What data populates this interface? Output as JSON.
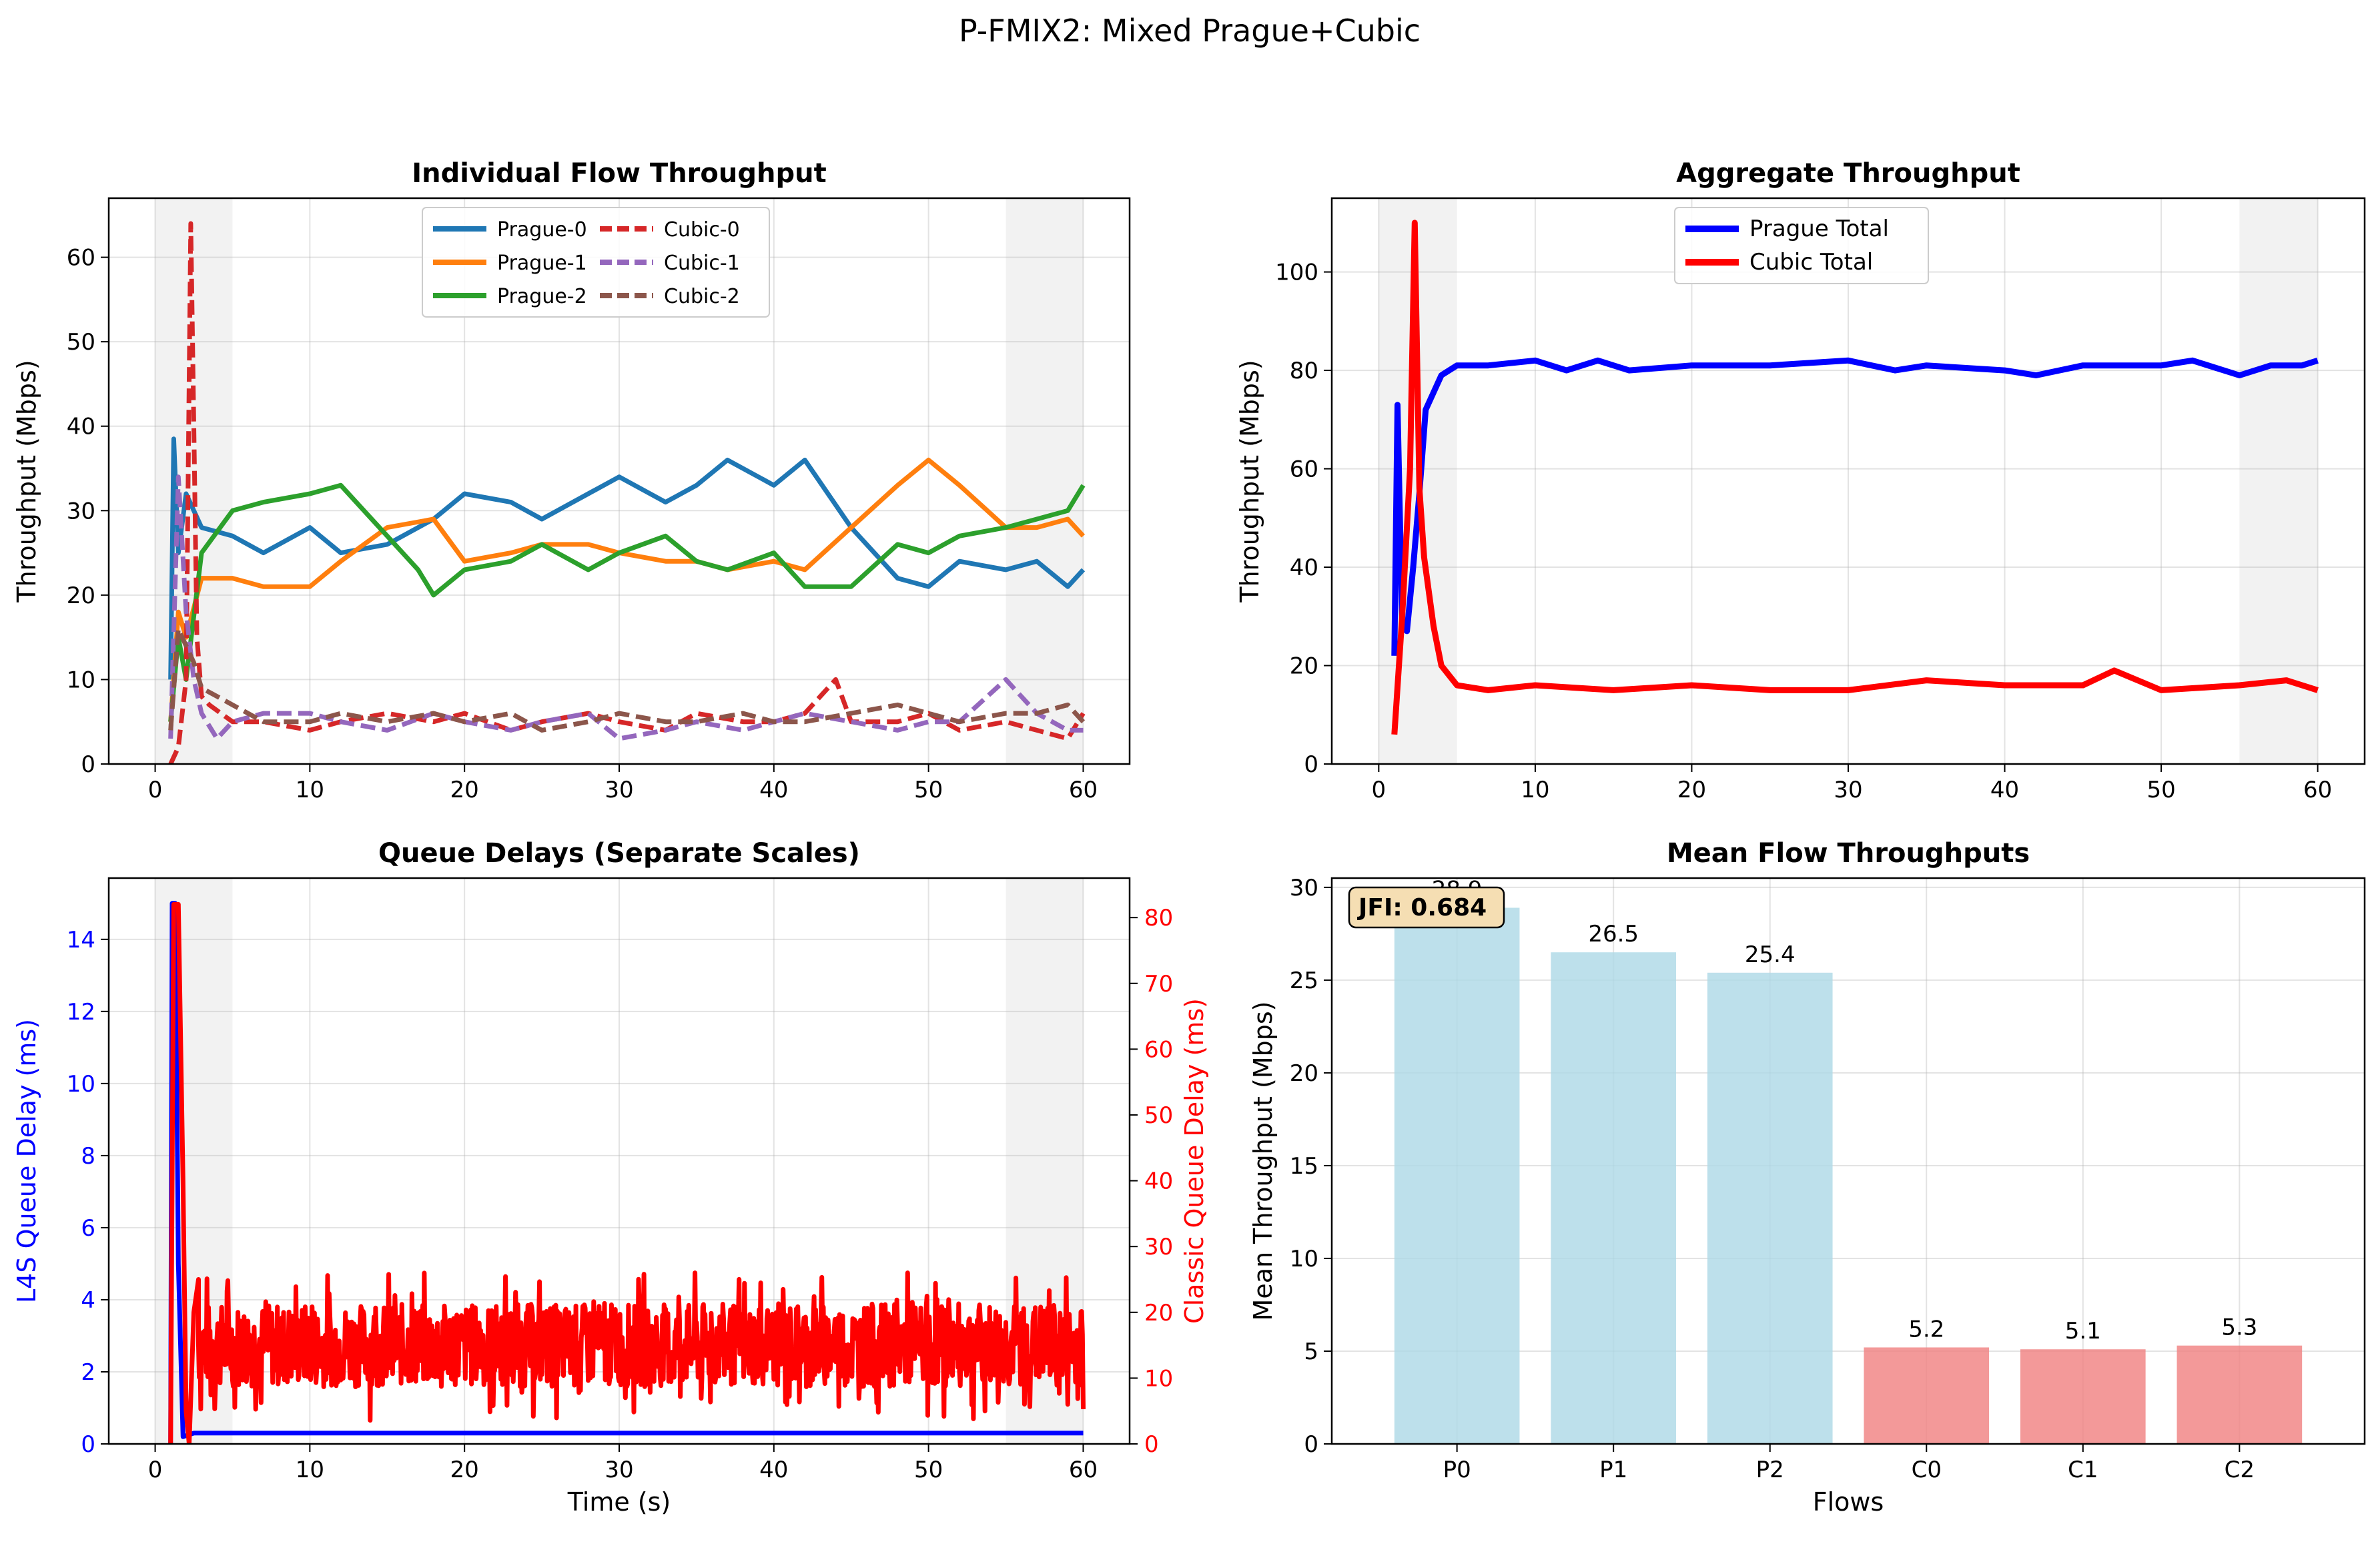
{
  "figure": {
    "suptitle": "P-FMIX2: Mixed Prague+Cubic"
  },
  "colors": {
    "prague0": "#1f77b4",
    "prague1": "#ff7f0e",
    "prague2": "#2ca02c",
    "cubic0": "#d62728",
    "cubic1": "#9467bd",
    "cubic2": "#8c564b",
    "prague_total": "#0000ff",
    "cubic_total": "#ff0000",
    "prague_bar": "#add8e6",
    "cubic_bar": "#f08080",
    "shade": "#d3d3d3"
  },
  "chart_data": [
    {
      "id": "individual",
      "type": "line",
      "title": "Individual Flow Throughput",
      "xlabel": "",
      "ylabel": "Throughput (Mbps)",
      "xlim": [
        -3,
        63
      ],
      "ylim": [
        0,
        67
      ],
      "xticks": [
        0,
        10,
        20,
        30,
        40,
        50,
        60
      ],
      "yticks": [
        0,
        10,
        20,
        30,
        40,
        50,
        60
      ],
      "grid": true,
      "shaded_x_ranges": [
        [
          0,
          5
        ],
        [
          55,
          60
        ]
      ],
      "legend": {
        "placement": "upper center",
        "columns": 2
      },
      "series": [
        {
          "name": "Prague-0",
          "color": "prague0",
          "dash": "solid",
          "x": [
            1,
            1.2,
            1.5,
            2,
            3,
            5,
            7,
            10,
            12,
            15,
            18,
            20,
            23,
            25,
            28,
            30,
            33,
            35,
            37,
            40,
            42,
            45,
            48,
            50,
            52,
            55,
            57,
            59,
            60
          ],
          "y": [
            10,
            38.5,
            25,
            32,
            28,
            27,
            25,
            28,
            25,
            26,
            29,
            32,
            31,
            29,
            32,
            34,
            31,
            33,
            36,
            33,
            36,
            28,
            22,
            21,
            24,
            23,
            24,
            21,
            23
          ]
        },
        {
          "name": "Prague-1",
          "color": "prague1",
          "dash": "solid",
          "x": [
            1,
            1.5,
            2,
            3,
            5,
            7,
            10,
            12,
            15,
            18,
            20,
            23,
            25,
            28,
            30,
            33,
            35,
            37,
            40,
            42,
            45,
            48,
            50,
            52,
            55,
            57,
            59,
            60
          ],
          "y": [
            5,
            18,
            15,
            22,
            22,
            21,
            21,
            24,
            28,
            29,
            24,
            25,
            26,
            26,
            25,
            24,
            24,
            23,
            24,
            23,
            28,
            33,
            36,
            33,
            28,
            28,
            29,
            27
          ]
        },
        {
          "name": "Prague-2",
          "color": "prague2",
          "dash": "solid",
          "x": [
            1,
            1.5,
            2,
            3,
            5,
            7,
            10,
            12,
            15,
            17,
            18,
            20,
            23,
            25,
            28,
            30,
            33,
            35,
            37,
            40,
            42,
            45,
            48,
            50,
            52,
            55,
            57,
            59,
            60
          ],
          "y": [
            5,
            15,
            10,
            25,
            30,
            31,
            32,
            33,
            27,
            23,
            20,
            23,
            24,
            26,
            23,
            25,
            27,
            24,
            23,
            25,
            21,
            21,
            26,
            25,
            27,
            28,
            29,
            30,
            33
          ]
        },
        {
          "name": "Cubic-0",
          "color": "cubic0",
          "dash": "dashed",
          "x": [
            1,
            1.5,
            2,
            2.3,
            2.5,
            2.7,
            3,
            3.5,
            5,
            7,
            10,
            12,
            15,
            18,
            20,
            23,
            25,
            28,
            30,
            33,
            35,
            38,
            40,
            42,
            44,
            45,
            48,
            50,
            52,
            55,
            57,
            59,
            60
          ],
          "y": [
            0,
            2,
            10,
            64,
            40,
            15,
            8,
            7,
            5,
            5,
            4,
            5,
            6,
            5,
            6,
            4,
            5,
            6,
            5,
            4,
            6,
            5,
            5,
            6,
            10,
            5,
            5,
            6,
            4,
            5,
            4,
            3,
            6
          ]
        },
        {
          "name": "Cubic-1",
          "color": "cubic1",
          "dash": "dashed",
          "x": [
            1,
            1.5,
            2,
            2.5,
            3,
            4,
            5,
            7,
            10,
            12,
            15,
            18,
            20,
            23,
            25,
            28,
            30,
            33,
            35,
            38,
            40,
            42,
            45,
            48,
            50,
            52,
            55,
            57,
            59,
            60
          ],
          "y": [
            3,
            34,
            18,
            10,
            6,
            3,
            5,
            6,
            6,
            5,
            4,
            6,
            5,
            4,
            5,
            6,
            3,
            4,
            5,
            4,
            5,
            6,
            5,
            4,
            5,
            5,
            10,
            6,
            4,
            4
          ]
        },
        {
          "name": "Cubic-2",
          "color": "cubic2",
          "dash": "dashed",
          "x": [
            1,
            1.5,
            2,
            2.5,
            3,
            4,
            5,
            7,
            10,
            12,
            15,
            18,
            20,
            23,
            25,
            28,
            30,
            33,
            35,
            38,
            40,
            42,
            45,
            48,
            50,
            52,
            55,
            57,
            59,
            60
          ],
          "y": [
            4,
            16,
            14,
            12,
            9,
            8,
            7,
            5,
            5,
            6,
            5,
            6,
            5,
            6,
            4,
            5,
            6,
            5,
            5,
            6,
            5,
            5,
            6,
            7,
            6,
            5,
            6,
            6,
            7,
            5
          ]
        }
      ]
    },
    {
      "id": "aggregate",
      "type": "line",
      "title": "Aggregate Throughput",
      "xlabel": "",
      "ylabel": "Throughput (Mbps)",
      "xlim": [
        -3,
        63
      ],
      "ylim": [
        0,
        115
      ],
      "xticks": [
        0,
        10,
        20,
        30,
        40,
        50,
        60
      ],
      "yticks": [
        0,
        20,
        40,
        60,
        80,
        100
      ],
      "grid": true,
      "shaded_x_ranges": [
        [
          0,
          5
        ],
        [
          55,
          60
        ]
      ],
      "legend": {
        "placement": "upper center",
        "columns": 1
      },
      "series": [
        {
          "name": "Prague Total",
          "color": "prague_total",
          "dash": "solid",
          "x": [
            1,
            1.2,
            1.5,
            1.8,
            2.2,
            2.6,
            3,
            4,
            5,
            7,
            10,
            12,
            14,
            16,
            20,
            25,
            30,
            33,
            35,
            40,
            42,
            45,
            50,
            52,
            55,
            57,
            59,
            60
          ],
          "y": [
            22,
            73,
            28,
            27,
            40,
            55,
            72,
            79,
            81,
            81,
            82,
            80,
            82,
            80,
            81,
            81,
            82,
            80,
            81,
            80,
            79,
            81,
            81,
            82,
            79,
            81,
            81,
            82
          ]
        },
        {
          "name": "Cubic Total",
          "color": "cubic_total",
          "dash": "solid",
          "x": [
            1,
            1.5,
            2,
            2.3,
            2.6,
            2.9,
            3.5,
            4,
            5,
            7,
            10,
            15,
            20,
            25,
            30,
            35,
            40,
            45,
            47,
            50,
            55,
            58,
            60
          ],
          "y": [
            6,
            30,
            60,
            110,
            56,
            42,
            28,
            20,
            16,
            15,
            16,
            15,
            16,
            15,
            15,
            17,
            16,
            16,
            19,
            15,
            16,
            17,
            15
          ]
        }
      ]
    },
    {
      "id": "queue",
      "type": "line",
      "title": "Queue Delays (Separate Scales)",
      "xlabel": "Time (s)",
      "ylabel": "L4S Queue Delay (ms)",
      "ylabel_right": "Classic Queue Delay (ms)",
      "xlim": [
        -3,
        63
      ],
      "ylim": [
        0,
        15.7
      ],
      "ylim_right": [
        0,
        86
      ],
      "xticks": [
        0,
        10,
        20,
        30,
        40,
        50,
        60
      ],
      "yticks": [
        0,
        2,
        4,
        6,
        8,
        10,
        12,
        14
      ],
      "yticks_right": [
        0,
        10,
        20,
        30,
        40,
        50,
        60,
        70,
        80
      ],
      "grid": true,
      "shaded_x_ranges": [
        [
          0,
          5
        ],
        [
          55,
          60
        ]
      ],
      "series": [
        {
          "name": "L4S",
          "axis": "left",
          "color": "prague_total",
          "x": [
            1,
            1.1,
            1.3,
            1.5,
            1.8,
            2.5,
            3,
            60
          ],
          "y": [
            0,
            15,
            15,
            5,
            0.2,
            0.3,
            0.3,
            0.3
          ]
        },
        {
          "name": "Classic",
          "axis": "right",
          "color": "cubic_total",
          "x": [
            1,
            1.2,
            1.5,
            1.8,
            2,
            2.2,
            2.5,
            2.8,
            3,
            60
          ],
          "y": [
            0,
            82,
            82,
            40,
            5,
            0,
            20,
            25,
            18,
            15
          ],
          "noise_band": {
            "from_x": 2.8,
            "to_x": 60,
            "center": 15,
            "low": 3,
            "high": 26
          }
        }
      ]
    },
    {
      "id": "means",
      "type": "bar",
      "title": "Mean Flow Throughputs",
      "xlabel": "Flows",
      "ylabel": "Mean Throughput (Mbps)",
      "ylim": [
        0,
        30.5
      ],
      "yticks": [
        0,
        5,
        10,
        15,
        20,
        25,
        30
      ],
      "grid": true,
      "categories": [
        "P0",
        "P1",
        "P2",
        "C0",
        "C1",
        "C2"
      ],
      "values": [
        28.9,
        26.5,
        25.4,
        5.2,
        5.1,
        5.3
      ],
      "value_labels": [
        "28.9",
        "26.5",
        "25.4",
        "5.2",
        "5.1",
        "5.3"
      ],
      "bar_colors": [
        "prague_bar",
        "prague_bar",
        "prague_bar",
        "cubic_bar",
        "cubic_bar",
        "cubic_bar"
      ],
      "annotation": "JFI: 0.684"
    }
  ]
}
